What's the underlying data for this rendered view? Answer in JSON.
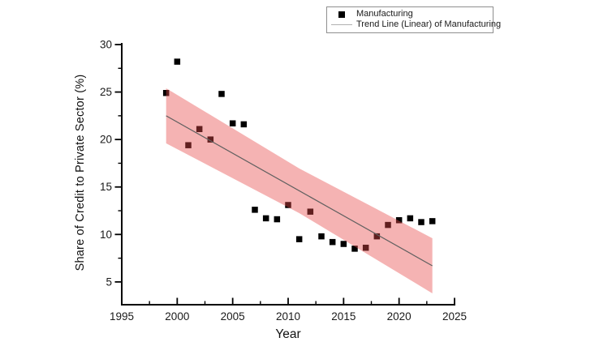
{
  "legend": {
    "items": [
      {
        "label": "Manufacturing",
        "marker": "black-square-icon"
      },
      {
        "label": "Trend Line (Linear) of Manufacturing",
        "marker": "gray-line-icon"
      }
    ]
  },
  "chart_data": {
    "type": "scatter",
    "title": "",
    "xlabel": "Year",
    "ylabel": "Share of Credit to Private Sector (%)",
    "xlim": [
      1995,
      2025
    ],
    "ylim": [
      2.6,
      30
    ],
    "xticks": [
      1995,
      2000,
      2005,
      2010,
      2015,
      2020,
      2025
    ],
    "yticks": [
      5,
      10,
      15,
      20,
      25,
      30
    ],
    "minor_tick_interval": 2.5,
    "grid": false,
    "legend_position": "top-center-outside",
    "series": [
      {
        "name": "Manufacturing",
        "type": "scatter",
        "marker": "square",
        "marker_size": 7.5,
        "color": "#000000",
        "points": [
          [
            1999,
            24.9
          ],
          [
            2000,
            28.2
          ],
          [
            2001,
            19.4
          ],
          [
            2002,
            21.1
          ],
          [
            2003,
            20.0
          ],
          [
            2004,
            24.8
          ],
          [
            2005,
            21.7
          ],
          [
            2006,
            21.6
          ],
          [
            2007,
            12.6
          ],
          [
            2008,
            11.7
          ],
          [
            2009,
            11.6
          ],
          [
            2010,
            13.1
          ],
          [
            2011,
            9.5
          ],
          [
            2012,
            12.4
          ],
          [
            2013,
            9.8
          ],
          [
            2014,
            9.2
          ],
          [
            2015,
            9.0
          ],
          [
            2016,
            8.5
          ],
          [
            2017,
            8.6
          ],
          [
            2018,
            9.8
          ],
          [
            2019,
            11.0
          ],
          [
            2020,
            11.5
          ],
          [
            2021,
            11.7
          ],
          [
            2022,
            11.3
          ],
          [
            2023,
            11.4
          ]
        ]
      },
      {
        "name": "Trend Line (Linear) of Manufacturing",
        "type": "line",
        "color": "#5f5f5f",
        "width": 1.2,
        "points": [
          [
            1999,
            22.5
          ],
          [
            2023,
            6.7
          ]
        ]
      }
    ],
    "confidence_band": {
      "color": "rgba(230, 75, 75, 0.42)",
      "x": [
        1999,
        2011,
        2023
      ],
      "upper": [
        25.4,
        16.95,
        9.6
      ],
      "lower": [
        19.6,
        12.25,
        3.8
      ]
    },
    "colors": {
      "axis": "#000000",
      "tick_label": "#1a1a1a",
      "band_over_white": "#f5b4b4",
      "band_over_marker": "#5e2020"
    }
  }
}
